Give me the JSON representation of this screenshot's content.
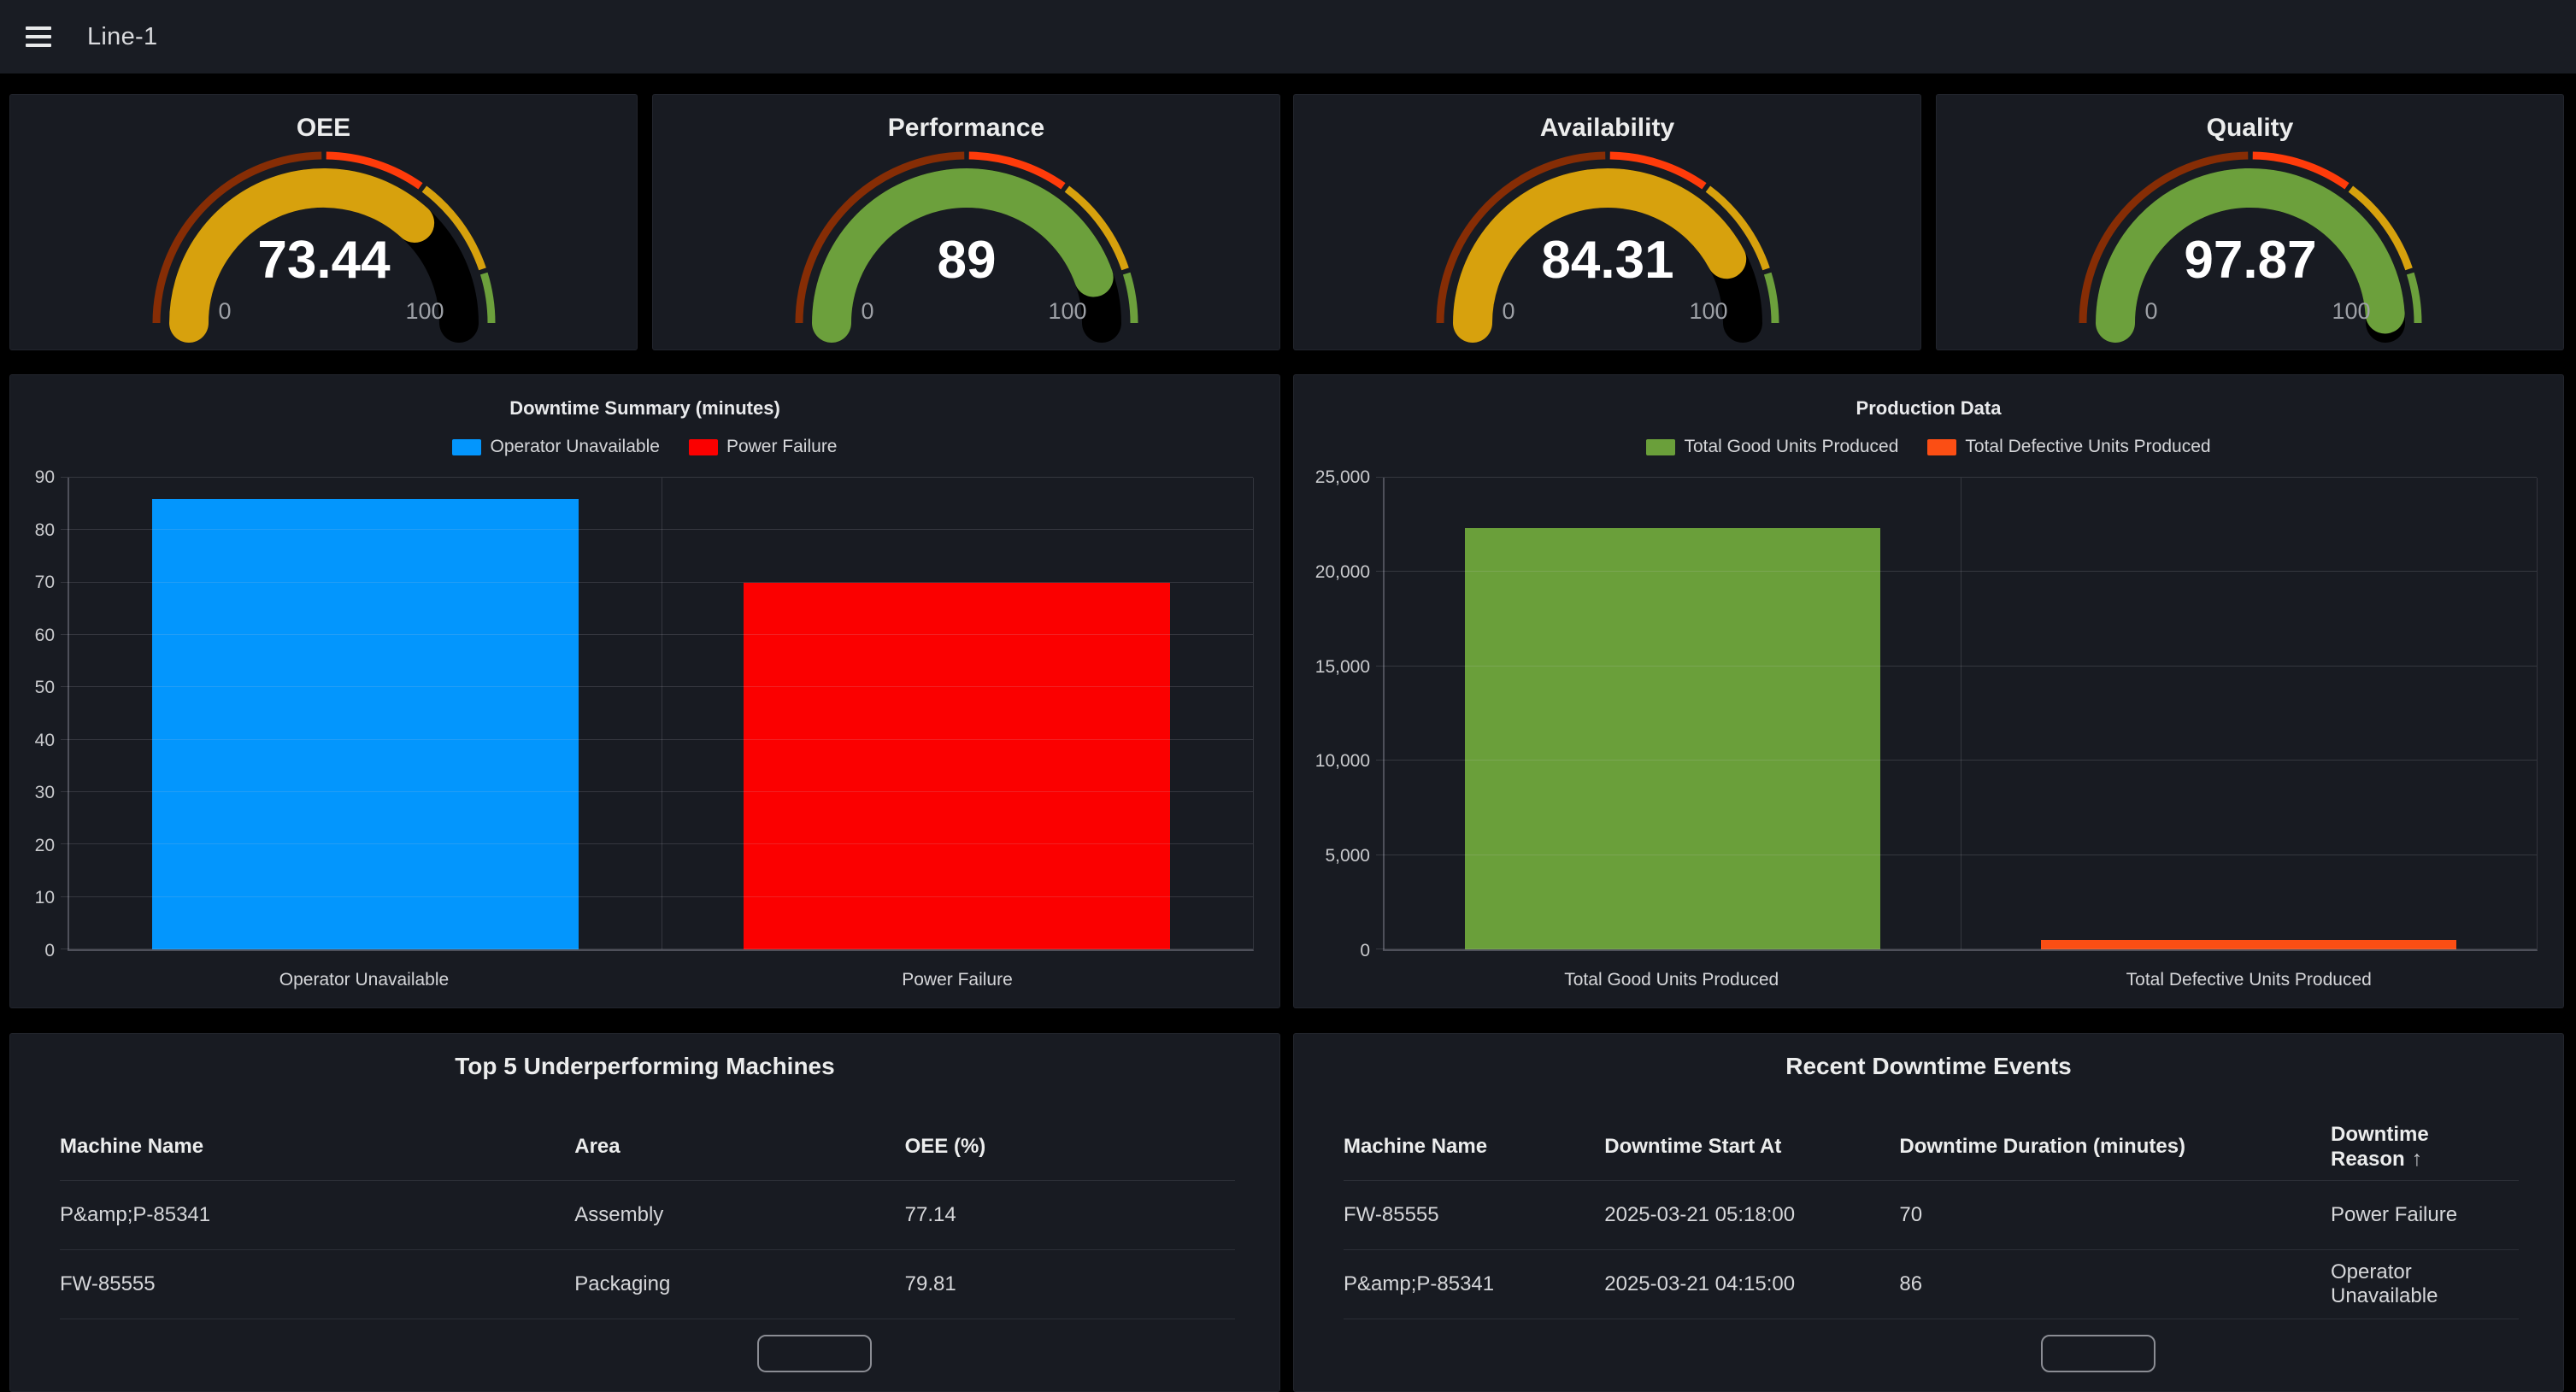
{
  "topbar": {
    "title": "Line-1",
    "menu_icon": "hamburger"
  },
  "gauges": [
    {
      "title": "OEE",
      "value": "73.44",
      "value_num": 73.44,
      "min": "0",
      "max": "100",
      "color": "#d7a10d"
    },
    {
      "title": "Performance",
      "value": "89",
      "value_num": 89,
      "min": "0",
      "max": "100",
      "color": "#6ca03c"
    },
    {
      "title": "Availability",
      "value": "84.31",
      "value_num": 84.31,
      "min": "0",
      "max": "100",
      "color": "#d7a10d"
    },
    {
      "title": "Quality",
      "value": "97.87",
      "value_num": 97.87,
      "min": "0",
      "max": "100",
      "color": "#6ca03c"
    }
  ],
  "gauge_thresholds": [
    {
      "from": 0,
      "to": 50,
      "color": "#862d05"
    },
    {
      "from": 50,
      "to": 70,
      "color": "#ff3b0a"
    },
    {
      "from": 70,
      "to": 90,
      "color": "#d7a10d"
    },
    {
      "from": 90,
      "to": 100,
      "color": "#6ca03c"
    }
  ],
  "chart_data": [
    {
      "type": "bar",
      "title": "Downtime Summary (minutes)",
      "categories": [
        "Operator Unavailable",
        "Power Failure"
      ],
      "values": [
        86,
        70
      ],
      "colors": [
        "#0396fd",
        "#fb0000"
      ],
      "legend": [
        "Operator Unavailable",
        "Power Failure"
      ],
      "legend_position": "top",
      "xlabel": "",
      "ylabel": "",
      "ylim": [
        0,
        90
      ],
      "yticks": [
        "0",
        "10",
        "20",
        "30",
        "40",
        "50",
        "60",
        "70",
        "80",
        "90"
      ],
      "grid": true
    },
    {
      "type": "bar",
      "title": "Production Data",
      "categories": [
        "Total Good Units Produced",
        "Total Defective Units Produced"
      ],
      "values": [
        22350,
        490
      ],
      "colors": [
        "#6a9f3a",
        "#fb4e14"
      ],
      "legend": [
        "Total Good Units Produced",
        "Total Defective Units Produced"
      ],
      "legend_position": "top",
      "xlabel": "",
      "ylabel": "",
      "ylim": [
        0,
        25000
      ],
      "yticks": [
        "0",
        "5,000",
        "10,000",
        "15,000",
        "20,000",
        "25,000"
      ],
      "grid": true
    }
  ],
  "tables": [
    {
      "title": "Top 5 Underperforming Machines",
      "columns": [
        "Machine Name",
        "Area",
        "OEE (%)"
      ],
      "rows": [
        [
          "P&amp;P-85341",
          "Assembly",
          "77.14"
        ],
        [
          "FW-85555",
          "Packaging",
          "79.81"
        ]
      ]
    },
    {
      "title": "Recent Downtime Events",
      "columns": [
        "Machine Name",
        "Downtime Start At",
        "Downtime Duration (minutes)",
        "Downtime Reason"
      ],
      "sort_column": "Downtime Reason",
      "sort_direction": "ascending",
      "sort_arrow": "↑",
      "rows": [
        [
          "FW-85555",
          "2025-03-21 05:18:00",
          "70",
          "Power Failure"
        ],
        [
          "P&amp;P-85341",
          "2025-03-21 04:15:00",
          "86",
          "Operator Unavailable"
        ]
      ]
    }
  ]
}
